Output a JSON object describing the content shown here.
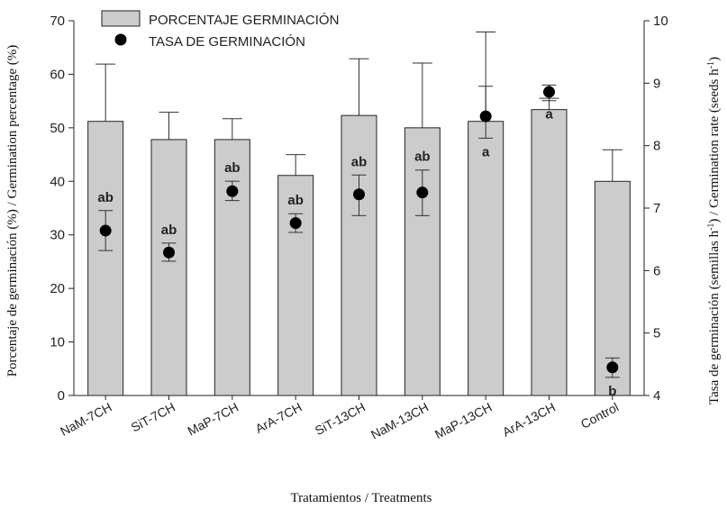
{
  "chart_data": {
    "type": "bar",
    "categories": [
      "NaM-7CH",
      "SiT-7CH",
      "MaP-7CH",
      "ArA-7CH",
      "SiT-13CH",
      "NaM-13CH",
      "MaP-13CH",
      "ArA-13CH",
      "Control"
    ],
    "xlabel": "Tratamientos / Treatments",
    "ylabel_left": "Porcentaje de germinación (%) / Germination percentage (%)",
    "ylabel_right_prefix": "Tasa de germinación (semillas h",
    "ylabel_right_mid": ") / Germination rate (seeds h",
    "ylabel_right_suffix": ")",
    "ylabel_right_sup": "-1",
    "ylim_left": [
      0,
      70
    ],
    "ylim_right": [
      4,
      10
    ],
    "yticks_left": [
      "0",
      "10",
      "20",
      "30",
      "40",
      "50",
      "60",
      "70"
    ],
    "yticks_right": [
      "4",
      "5",
      "6",
      "7",
      "8",
      "9",
      "10"
    ],
    "legend": {
      "placement": "top-left",
      "bars_label": "PORCENTAJE GERMINACIÓN",
      "points_label": "TASA DE GERMINACIÓN"
    },
    "series": [
      {
        "name": "PORCENTAJE GERMINACIÓN",
        "kind": "bar",
        "axis": "left",
        "values": [
          51.2,
          47.8,
          47.8,
          41.1,
          52.3,
          50.0,
          51.2,
          53.4,
          40.0
        ],
        "error_upper": [
          61.9,
          52.9,
          51.7,
          45.0,
          62.9,
          62.1,
          67.9,
          55.5,
          45.9
        ]
      },
      {
        "name": "TASA DE GERMINACIÓN",
        "kind": "point",
        "axis": "right",
        "values": [
          6.64,
          6.29,
          7.27,
          6.76,
          7.22,
          7.25,
          8.47,
          8.86,
          4.45
        ],
        "error_low": [
          6.32,
          6.15,
          7.12,
          6.61,
          6.88,
          6.88,
          8.12,
          8.72,
          4.29
        ],
        "error_high": [
          6.96,
          6.44,
          7.43,
          6.91,
          7.53,
          7.61,
          8.95,
          8.97,
          4.6
        ]
      }
    ],
    "significance_labels": [
      "ab",
      "ab",
      "ab",
      "ab",
      "ab",
      "ab",
      "a",
      "a",
      "b"
    ]
  }
}
